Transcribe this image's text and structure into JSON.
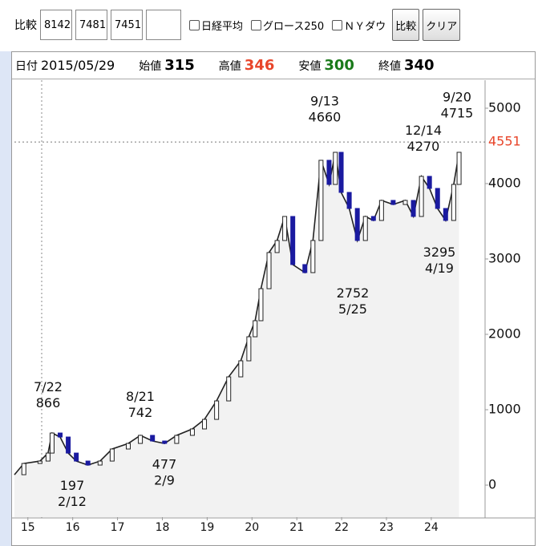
{
  "toolbar": {
    "label": "比較",
    "inputs": [
      "8142",
      "7481",
      "7451",
      ""
    ],
    "checkboxes": [
      "日経平均",
      "グロース250",
      "ＮＹダウ"
    ],
    "buttons": [
      "比較",
      "クリア"
    ]
  },
  "info": {
    "date_label": "日付",
    "date": "2015/05/29",
    "open_label": "始値",
    "open": "315",
    "high_label": "高値",
    "high": "346",
    "low_label": "安値",
    "low": "300",
    "close_label": "終値",
    "close": "340"
  },
  "chart_data": {
    "type": "line",
    "color": "#222222",
    "x": [
      14.7,
      14.91,
      15.27,
      15.45,
      15.54,
      15.72,
      15.9,
      16.08,
      16.34,
      16.61,
      16.88,
      17.24,
      17.51,
      17.78,
      18.05,
      18.32,
      18.67,
      18.94,
      19.21,
      19.48,
      19.75,
      19.93,
      20.07,
      20.2,
      20.38,
      20.56,
      20.73,
      20.91,
      21.18,
      21.36,
      21.54,
      21.72,
      21.86,
      21.99,
      22.17,
      22.35,
      22.53,
      22.71,
      22.89,
      23.15,
      23.42,
      23.6,
      23.78,
      23.96,
      24.14,
      24.32,
      24.5,
      24.62
    ],
    "values": [
      138,
      287,
      319,
      425,
      691,
      638,
      425,
      319,
      266,
      319,
      479,
      553,
      660,
      585,
      553,
      660,
      745,
      872,
      1117,
      1436,
      1649,
      1968,
      2181,
      2606,
      3085,
      3245,
      3564,
      2926,
      2819,
      3245,
      4309,
      3989,
      4415,
      3883,
      3670,
      3245,
      3564,
      3511,
      3777,
      3723,
      3777,
      3564,
      4096,
      3936,
      3670,
      3511,
      3989,
      4415
    ],
    "xlim": [
      14.7,
      25.2
    ],
    "xticks": [
      15,
      16,
      17,
      18,
      19,
      20,
      21,
      22,
      23,
      24
    ],
    "ylim": [
      -425,
      5372
    ],
    "yticks": [
      0,
      1000,
      2000,
      3000,
      4000,
      5000
    ],
    "grid": false,
    "last_price": 4551,
    "last_price_color": "#e8452a",
    "annotations": [
      {
        "date": "7/22",
        "value": 866
      },
      {
        "date": "2/12",
        "value": 197
      },
      {
        "date": "8/21",
        "value": 742
      },
      {
        "date": "2/9",
        "value": 477
      },
      {
        "date": "9/13",
        "value": 4660
      },
      {
        "date": "5/25",
        "value": 2752
      },
      {
        "date": "12/14",
        "value": 4270
      },
      {
        "date": "4/19",
        "value": 3295
      },
      {
        "date": "9/20",
        "value": 4715
      }
    ]
  }
}
